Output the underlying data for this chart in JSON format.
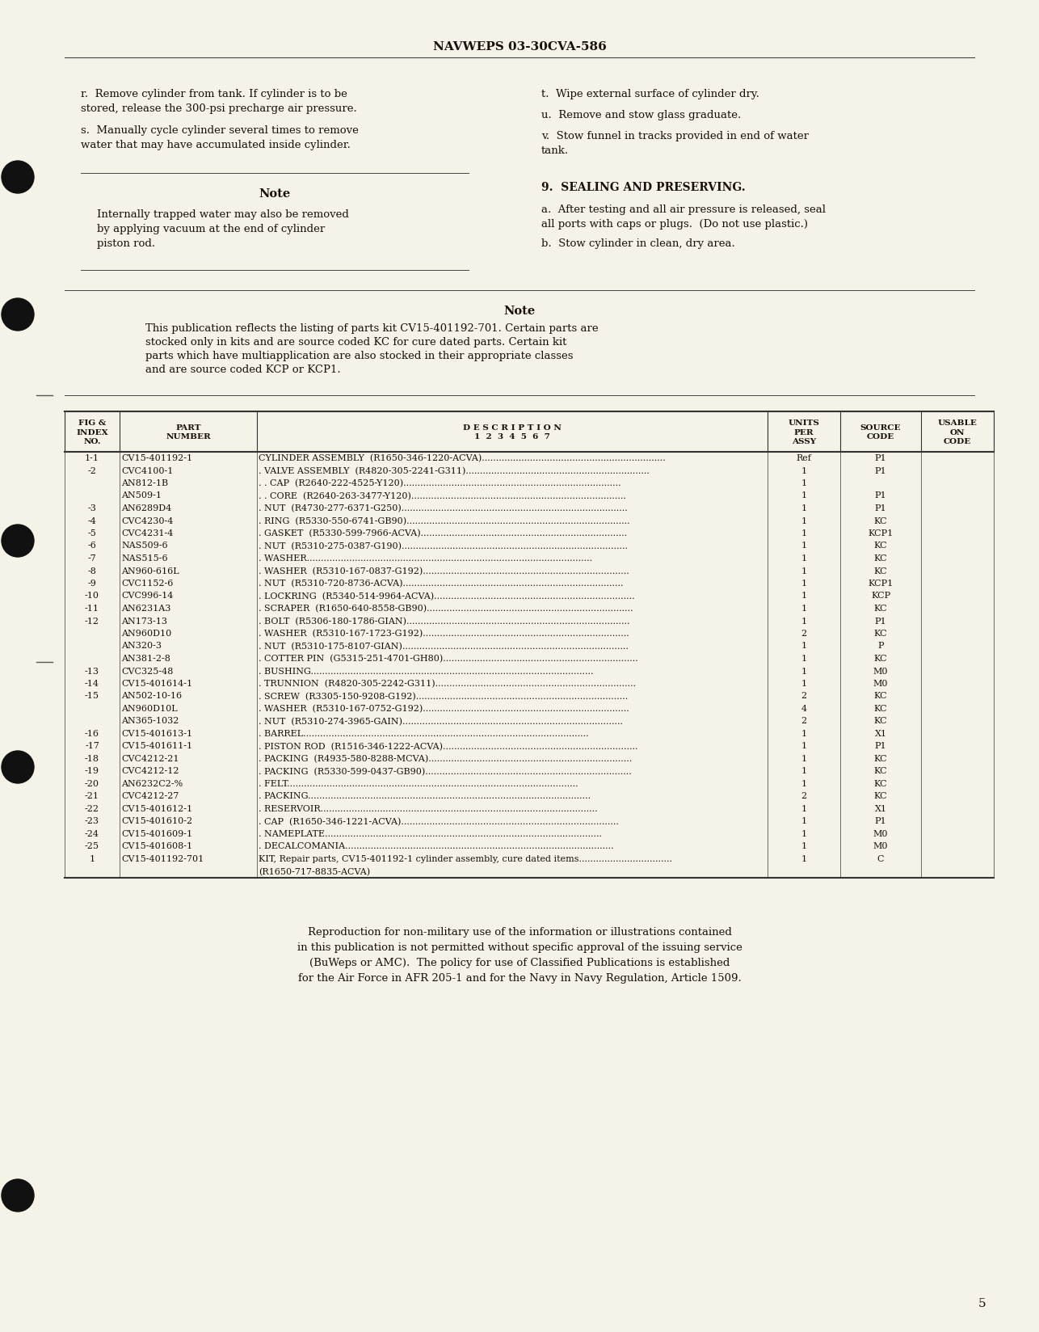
{
  "bg_color": "#f5f2e8",
  "header": "NAVWEPS 03-30CVA-586",
  "page_number": "5",
  "para_r": [
    "r.  Remove cylinder from tank. If cylinder is to be",
    "stored, release the 300-psi precharge air pressure."
  ],
  "para_s": [
    "s.  Manually cycle cylinder several times to remove",
    "water that may have accumulated inside cylinder."
  ],
  "para_t": "t.  Wipe external surface of cylinder dry.",
  "para_u": "u.  Remove and stow glass graduate.",
  "para_v": [
    "v.  Stow funnel in tracks provided in end of water",
    "tank."
  ],
  "note1_title": "Note",
  "note1_body": [
    "Internally trapped water may also be removed",
    "by applying vacuum at the end of cylinder",
    "piston rod."
  ],
  "section9_title": "9.  SEALING AND PRESERVING.",
  "section9_a": [
    "a.  After testing and all air pressure is released, seal",
    "all ports with caps or plugs.  (Do not use plastic.)"
  ],
  "section9_b": "b.  Stow cylinder in clean, dry area.",
  "note2_title": "Note",
  "note2_body": [
    "This publication reflects the listing of parts kit CV15-401192-701. Certain parts are",
    "stocked only in kits and are source coded KC for cure dated parts. Certain kit",
    "parts which have multiapplication are also stocked in their appropriate classes",
    "and are source coded KCP or KCP1."
  ],
  "table_col_headers": [
    "FIG &\nINDEX\nNO.",
    "PART\nNUMBER",
    "D E S C R I P T I O N\n1 2 3 4 5 6 7",
    "UNITS\nPER\nASSY",
    "SOURCE\nCODE",
    "USABLE\nON\nCODE"
  ],
  "table_rows": [
    [
      "1-1",
      "CV15-401192-1",
      "CYLINDER ASSEMBLY  (R1650-346-1220-ACVA).................................................................",
      "Ref",
      "P1",
      ""
    ],
    [
      "-2",
      "CVC4100-1",
      ". VALVE ASSEMBLY  (R4820-305-2241-G311).................................................................",
      "1",
      "P1",
      ""
    ],
    [
      "",
      "AN812-1B",
      ". . CAP  (R2640-222-4525-Y120).............................................................................",
      "1",
      "",
      ""
    ],
    [
      "",
      "AN509-1",
      ". . CORE  (R2640-263-3477-Y120)............................................................................",
      "1",
      "P1",
      ""
    ],
    [
      "-3",
      "AN6289D4",
      ". NUT  (R4730-277-6371-G250)................................................................................",
      "1",
      "P1",
      ""
    ],
    [
      "-4",
      "CVC4230-4",
      ". RING  (R5330-550-6741-GB90)...............................................................................",
      "1",
      "KC",
      ""
    ],
    [
      "-5",
      "CVC4231-4",
      ". GASKET  (R5330-599-7966-ACVA).........................................................................",
      "1",
      "KCP1",
      ""
    ],
    [
      "-6",
      "NAS509-6",
      ". NUT  (R5310-275-0387-G190)................................................................................",
      "1",
      "KC",
      ""
    ],
    [
      "-7",
      "NAS515-6",
      ". WASHER.....................................................................................................",
      "1",
      "KC",
      ""
    ],
    [
      "-8",
      "AN960-616L",
      ". WASHER  (R5310-167-0837-G192).........................................................................",
      "1",
      "KC",
      ""
    ],
    [
      "-9",
      "CVC1152-6",
      ". NUT  (R5310-720-8736-ACVA)..............................................................................",
      "1",
      "KCP1",
      ""
    ],
    [
      "-10",
      "CVC996-14",
      ". LOCKRING  (R5340-514-9964-ACVA).......................................................................",
      "1",
      "KCP",
      ""
    ],
    [
      "-11",
      "AN6231A3",
      ". SCRAPER  (R1650-640-8558-GB90).........................................................................",
      "1",
      "KC",
      ""
    ],
    [
      "-12",
      "AN173-13",
      ". BOLT  (R5306-180-1786-GIAN)...............................................................................",
      "1",
      "P1",
      ""
    ],
    [
      "",
      "AN960D10",
      ". WASHER  (R5310-167-1723-G192).........................................................................",
      "2",
      "KC",
      ""
    ],
    [
      "",
      "AN320-3",
      ". NUT  (R5310-175-8107-GIAN)................................................................................",
      "1",
      "P",
      ""
    ],
    [
      "",
      "AN381-2-8",
      ". COTTER PIN  (G5315-251-4701-GH80).....................................................................",
      "1",
      "KC",
      ""
    ],
    [
      "-13",
      "CVC325-48",
      ". BUSHING....................................................................................................",
      "1",
      "M0",
      ""
    ],
    [
      "-14",
      "CV15-401614-1",
      ". TRUNNION  (R4820-305-2242-G311).......................................................................",
      "1",
      "M0",
      ""
    ],
    [
      "-15",
      "AN502-10-16",
      ". SCREW  (R3305-150-9208-G192)...........................................................................",
      "2",
      "KC",
      ""
    ],
    [
      "",
      "AN960D10L",
      ". WASHER  (R5310-167-0752-G192).........................................................................",
      "4",
      "KC",
      ""
    ],
    [
      "",
      "AN365-1032",
      ". NUT  (R5310-274-3965-GAIN)..............................................................................",
      "2",
      "KC",
      ""
    ],
    [
      "-16",
      "CV15-401613-1",
      ". BARREL.....................................................................................................",
      "1",
      "X1",
      ""
    ],
    [
      "-17",
      "CV15-401611-1",
      ". PISTON ROD  (R1516-346-1222-ACVA).....................................................................",
      "1",
      "P1",
      ""
    ],
    [
      "-18",
      "CVC4212-21",
      ". PACKING  (R4935-580-8288-MCVA)........................................................................",
      "1",
      "KC",
      ""
    ],
    [
      "-19",
      "CVC4212-12",
      ". PACKING  (R5330-599-0437-GB90).........................................................................",
      "1",
      "KC",
      ""
    ],
    [
      "-20",
      "AN6232C2-%",
      ". FELT.......................................................................................................",
      "1",
      "KC",
      ""
    ],
    [
      "-21",
      "CVC4212-27",
      ". PACKING....................................................................................................",
      "2",
      "KC",
      ""
    ],
    [
      "-22",
      "CV15-401612-1",
      ". RESERVOIR..................................................................................................",
      "1",
      "X1",
      ""
    ],
    [
      "-23",
      "CV15-401610-2",
      ". CAP  (R1650-346-1221-ACVA).............................................................................",
      "1",
      "P1",
      ""
    ],
    [
      "-24",
      "CV15-401609-1",
      ". NAMEPLATE..................................................................................................",
      "1",
      "M0",
      ""
    ],
    [
      "-25",
      "CV15-401608-1",
      ". DECALCOMANIA...............................................................................................",
      "1",
      "M0",
      ""
    ],
    [
      "1",
      "CV15-401192-701",
      "KIT, Repair parts, CV15-401192-1 cylinder assembly, cure dated items.................................",
      "1",
      "C",
      ""
    ],
    [
      "",
      "",
      "(R1650-717-8835-ACVA)",
      "",
      "",
      ""
    ]
  ],
  "footer_lines": [
    "Reproduction for non-military use of the information or illustrations contained",
    "in this publication is not permitted without specific approval of the issuing service",
    "(BuWeps or AMC).  The policy for use of Classified Publications is established",
    "for the Air Force in AFR 205-1 and for the Navy in Navy Regulation, Article 1509."
  ],
  "circle_positions_y": [
    220,
    390,
    670,
    950,
    1480
  ],
  "text_color": "#1a1008"
}
